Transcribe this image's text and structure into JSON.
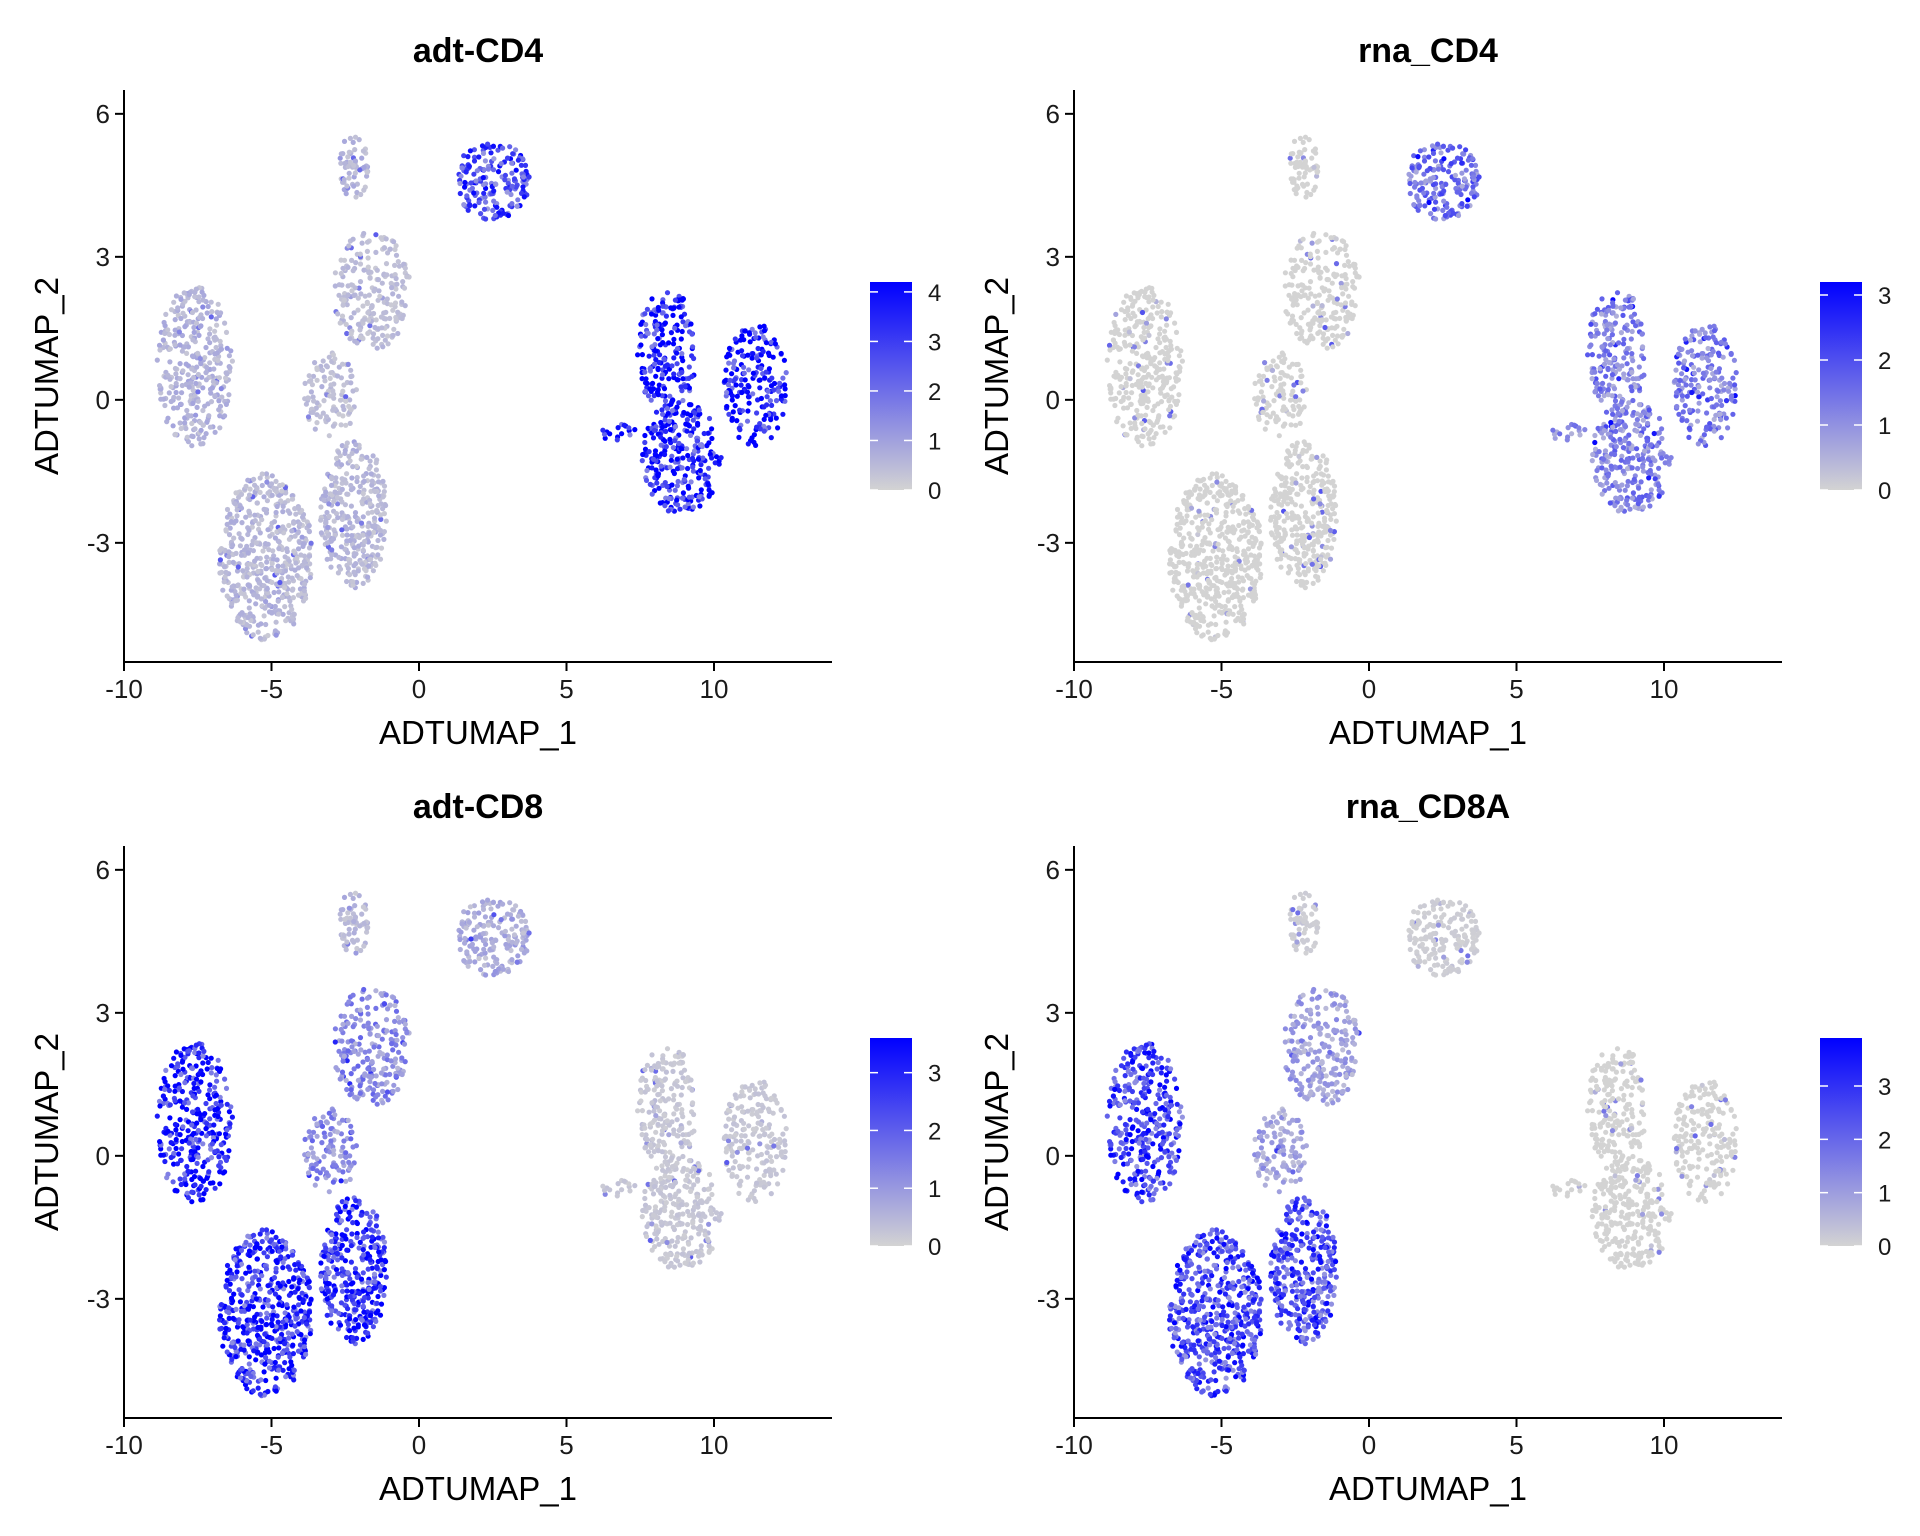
{
  "chart_data": [
    {
      "type": "scatter",
      "title": "adt-CD4",
      "xlabel": "ADTUMAP_1",
      "ylabel": "ADTUMAP_2",
      "xlim": [
        -10,
        14
      ],
      "ylim": [
        -5.5,
        6.5
      ],
      "xticks": [
        -10,
        -5,
        0,
        5,
        10
      ],
      "xtick_labels": [
        "-10",
        "-5",
        "0",
        "5",
        "10"
      ],
      "yticks": [
        -3,
        0,
        3,
        6
      ],
      "ytick_labels": [
        "-3",
        "0",
        "3",
        "6"
      ],
      "color_scale": {
        "low": "#d3d3d3",
        "high": "#0000ff",
        "min": 0,
        "max": 4.2
      },
      "legend_ticks": [
        0,
        1,
        2,
        3,
        4
      ],
      "legend_tick_labels": [
        "0",
        "1",
        "2",
        "3",
        "4"
      ],
      "legend_position": "right",
      "grid": false,
      "cluster_expression": {
        "top_left_cluster": 0.6,
        "top_right_cluster": 2.6,
        "right_clusters": 3.7,
        "left_cluster": 0.6,
        "bottom_lobes": 0.5,
        "stem": 0.4
      }
    },
    {
      "type": "scatter",
      "title": "rna_CD4",
      "xlabel": "ADTUMAP_1",
      "ylabel": "ADTUMAP_2",
      "xlim": [
        -10,
        14
      ],
      "ylim": [
        -5.5,
        6.5
      ],
      "xticks": [
        -10,
        -5,
        0,
        5,
        10
      ],
      "xtick_labels": [
        "-10",
        "-5",
        "0",
        "5",
        "10"
      ],
      "yticks": [
        -3,
        0,
        3,
        6
      ],
      "ytick_labels": [
        "-3",
        "0",
        "3",
        "6"
      ],
      "color_scale": {
        "low": "#d3d3d3",
        "high": "#0000ff",
        "min": 0,
        "max": 3.2
      },
      "legend_ticks": [
        0,
        1,
        2,
        3
      ],
      "legend_tick_labels": [
        "0",
        "1",
        "2",
        "3"
      ],
      "legend_position": "right",
      "grid": false,
      "cluster_expression": {
        "top_left_cluster": 0.0,
        "top_right_cluster": 1.4,
        "right_clusters": 1.2,
        "left_cluster": 0.0,
        "bottom_lobes": 0.0,
        "stem": 0.0
      }
    },
    {
      "type": "scatter",
      "title": "adt-CD8",
      "xlabel": "ADTUMAP_1",
      "ylabel": "ADTUMAP_2",
      "xlim": [
        -10,
        14
      ],
      "ylim": [
        -5.5,
        6.5
      ],
      "xticks": [
        -10,
        -5,
        0,
        5,
        10
      ],
      "xtick_labels": [
        "-10",
        "-5",
        "0",
        "5",
        "10"
      ],
      "yticks": [
        -3,
        0,
        3,
        6
      ],
      "ytick_labels": [
        "-3",
        "0",
        "3",
        "6"
      ],
      "color_scale": {
        "low": "#d3d3d3",
        "high": "#0000ff",
        "min": 0,
        "max": 3.6
      },
      "legend_ticks": [
        0,
        1,
        2,
        3
      ],
      "legend_tick_labels": [
        "0",
        "1",
        "2",
        "3"
      ],
      "legend_position": "right",
      "grid": false,
      "cluster_expression": {
        "top_left_cluster": 0.4,
        "top_right_cluster": 0.6,
        "right_clusters": 0.2,
        "left_cluster": 3.0,
        "bottom_lobes": 2.8,
        "stem": 1.2
      }
    },
    {
      "type": "scatter",
      "title": "rna_CD8A",
      "xlabel": "ADTUMAP_1",
      "ylabel": "ADTUMAP_2",
      "xlim": [
        -10,
        14
      ],
      "ylim": [
        -5.5,
        6.5
      ],
      "xticks": [
        -10,
        -5,
        0,
        5,
        10
      ],
      "xtick_labels": [
        "-10",
        "-5",
        "0",
        "5",
        "10"
      ],
      "yticks": [
        -3,
        0,
        3,
        6
      ],
      "ytick_labels": [
        "-3",
        "0",
        "3",
        "6"
      ],
      "color_scale": {
        "low": "#d3d3d3",
        "high": "#0000ff",
        "min": 0,
        "max": 3.9
      },
      "legend_ticks": [
        0,
        1,
        2,
        3
      ],
      "legend_tick_labels": [
        "0",
        "1",
        "2",
        "3"
      ],
      "legend_position": "right",
      "grid": false,
      "cluster_expression": {
        "top_left_cluster": 0.1,
        "top_right_cluster": 0.1,
        "right_clusters": 0.0,
        "left_cluster": 2.6,
        "bottom_lobes": 2.5,
        "stem": 0.9
      }
    }
  ]
}
